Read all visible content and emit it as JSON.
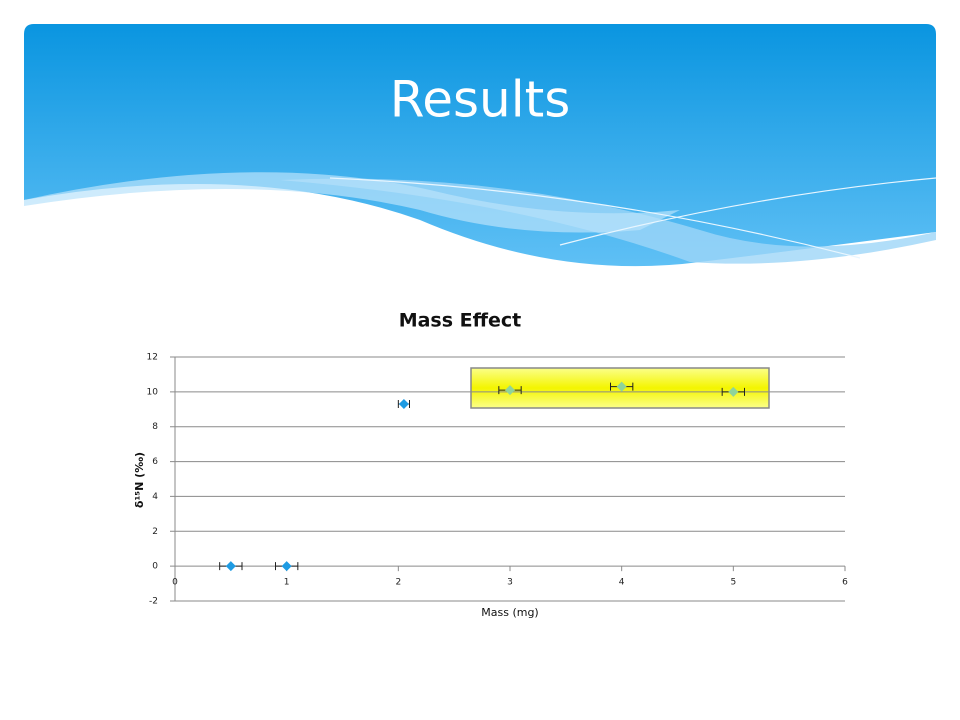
{
  "slide_title": "Results",
  "chart_data": {
    "type": "scatter",
    "title": "Mass Effect",
    "x_label": "Mass (mg)",
    "y_label": "δ¹⁵N (‰)",
    "xlim": [
      0,
      6
    ],
    "xticks": [
      0,
      1,
      2,
      3,
      4,
      5,
      6
    ],
    "ylim": [
      -2,
      12
    ],
    "yticks": [
      -2,
      0,
      2,
      4,
      6,
      8,
      10,
      12
    ],
    "grid": true,
    "series": [
      {
        "color": "#1e9be3",
        "x": [
          0.5,
          1.0,
          2.05
        ],
        "values": [
          0,
          0,
          9.3
        ],
        "xerr": [
          0.1,
          0.1,
          0.05
        ]
      },
      {
        "color": "#8fd49a",
        "x": [
          3.0,
          4.0,
          5.0
        ],
        "values": [
          10.1,
          10.3,
          10.0
        ],
        "xerr": [
          0.1,
          0.1,
          0.1
        ]
      }
    ]
  }
}
